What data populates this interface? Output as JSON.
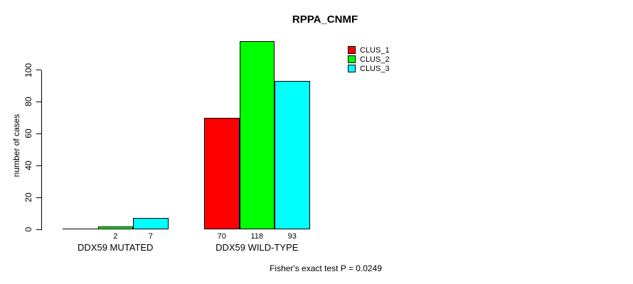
{
  "page": {
    "background_color": "#ffffff",
    "text_color": "#000000",
    "axis_color": "#000000"
  },
  "chart_data": {
    "type": "bar",
    "title": "RPPA_CNMF",
    "xlabel": "",
    "ylabel": "number of cases",
    "yticks": [
      0,
      20,
      40,
      60,
      80,
      100
    ],
    "ylim": [
      0,
      118
    ],
    "grid": false,
    "categories": [
      "DDX59 MUTATED",
      "DDX59 WILD-TYPE"
    ],
    "series": [
      {
        "name": "CLUS_1",
        "color": "#ff0000",
        "values": [
          0,
          70
        ]
      },
      {
        "name": "CLUS_2",
        "color": "#00ff00",
        "values": [
          2,
          118
        ]
      },
      {
        "name": "CLUS_3",
        "color": "#00ffff",
        "values": [
          7,
          93
        ]
      }
    ],
    "bar_labels": [
      [
        "",
        "2",
        "7"
      ],
      [
        "70",
        "118",
        "93"
      ]
    ],
    "legend": {
      "position": "top-right",
      "entries": [
        {
          "label": "CLUS_1",
          "color": "#ff0000"
        },
        {
          "label": "CLUS_2",
          "color": "#00ff00"
        },
        {
          "label": "CLUS_3",
          "color": "#00ffff"
        }
      ]
    },
    "annotation": "Fisher's exact test P = 0.0249"
  }
}
